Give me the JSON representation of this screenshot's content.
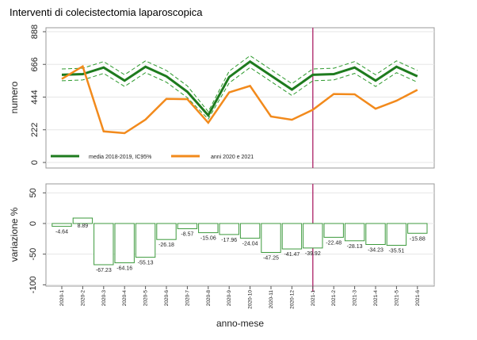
{
  "title": "Interventi di colecistectomia laparoscopica",
  "colors": {
    "media": "#1e7b1e",
    "ci": "#2d9a2d",
    "anni": "#f28a1c",
    "marker": "#b03070",
    "bar_stroke": "#3c9a3c",
    "grid": "#e6e6e6"
  },
  "chart_data": [
    {
      "type": "line",
      "ylabel": "numero",
      "yticks": [
        0,
        222,
        444,
        666,
        888
      ],
      "ylim": [
        0,
        888
      ],
      "grid": true,
      "legend_position": "bottom",
      "x": [
        "2020-1",
        "2020-2",
        "2020-3",
        "2020-4",
        "2020-5",
        "2020-6",
        "2020-7",
        "2020-8",
        "2020-9",
        "2020-10",
        "2020-11",
        "2020-12",
        "2021-1",
        "2021-2",
        "2021-3",
        "2021-4",
        "2021-5",
        "2021-6"
      ],
      "series": [
        {
          "name": "media 2018-2019, IC95%",
          "role": "mean",
          "values": [
            595,
            600,
            645,
            556,
            650,
            585,
            480,
            320,
            580,
            685,
            590,
            495,
            595,
            600,
            645,
            556,
            650,
            585
          ]
        },
        {
          "role": "ci_upper",
          "values": [
            635,
            640,
            685,
            596,
            690,
            625,
            520,
            345,
            620,
            725,
            630,
            535,
            635,
            640,
            685,
            596,
            690,
            625
          ]
        },
        {
          "role": "ci_lower",
          "values": [
            555,
            560,
            605,
            516,
            610,
            545,
            440,
            295,
            540,
            645,
            550,
            455,
            555,
            560,
            605,
            516,
            610,
            545
          ]
        },
        {
          "name": "anni 2020 e 2021",
          "role": "current",
          "values": [
            567,
            653,
            211,
            199,
            291,
            432,
            430,
            270,
            476,
            520,
            312,
            290,
            358,
            465,
            463,
            365,
            419,
            493
          ]
        }
      ],
      "marker_x": "2021-1"
    },
    {
      "type": "bar",
      "ylabel": "variazione %",
      "xlabel": "anno-mese",
      "yticks": [
        50,
        0,
        -50,
        -100
      ],
      "ylim": [
        -100,
        50
      ],
      "grid": true,
      "categories": [
        "2020-1",
        "2020-2",
        "2020-3",
        "2020-4",
        "2020-5",
        "2020-6",
        "2020-7",
        "2020-8",
        "2020-9",
        "2020-10",
        "2020-11",
        "2020-12",
        "2021-1",
        "2021-2",
        "2021-3",
        "2021-4",
        "2021-5",
        "2021-6"
      ],
      "values": [
        -4.64,
        8.89,
        -67.23,
        -64.16,
        -55.13,
        -26.18,
        -8.57,
        -15.06,
        -17.96,
        -24.04,
        -47.25,
        -41.47,
        -39.92,
        -22.48,
        -28.13,
        -34.23,
        -35.51,
        -15.88
      ],
      "labels": [
        "-4.64",
        "8.89",
        "-67.23",
        "-64.16",
        "-55.13",
        "-26.18",
        "-8.57",
        "-15.06",
        "-17.96",
        "-24.04",
        "-47.25",
        "-41.47",
        "-39.92",
        "-22.48",
        "-28.13",
        "-34.23",
        "-35.51",
        "-15.88"
      ],
      "marker_x": "2021-1"
    }
  ]
}
